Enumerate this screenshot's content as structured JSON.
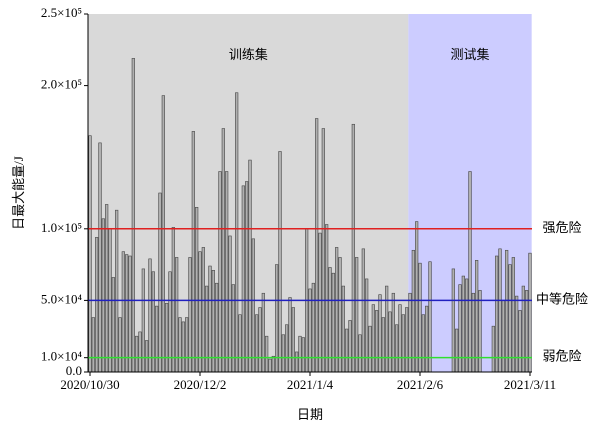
{
  "chart_data": {
    "type": "bar",
    "y_label": "日最大能量/J",
    "x_label": "日期",
    "color": "#b0b0b0",
    "categories": [
      "2020/10/30",
      null,
      null,
      null,
      null,
      null,
      null,
      null,
      null,
      null,
      null,
      null,
      null,
      null,
      null,
      null,
      null,
      null,
      null,
      null,
      null,
      null,
      null,
      null,
      null,
      null,
      null,
      null,
      null,
      null,
      null,
      null,
      null,
      "2020/12/2",
      null,
      null,
      null,
      null,
      null,
      null,
      null,
      null,
      null,
      null,
      null,
      null,
      null,
      null,
      null,
      null,
      null,
      null,
      null,
      null,
      null,
      null,
      null,
      null,
      null,
      null,
      null,
      null,
      null,
      null,
      null,
      null,
      "2021/1/4",
      null,
      null,
      null,
      null,
      null,
      null,
      null,
      null,
      null,
      null,
      null,
      null,
      null,
      null,
      null,
      null,
      null,
      null,
      null,
      null,
      null,
      null,
      null,
      null,
      null,
      null,
      null,
      null,
      null,
      null,
      null,
      null,
      "2021/2/6",
      null,
      null,
      null,
      null,
      null,
      null,
      null,
      null,
      null,
      null,
      null,
      null,
      null,
      null,
      null,
      null,
      null,
      null,
      null,
      null,
      null,
      null,
      null,
      null,
      null,
      null,
      null,
      null,
      null,
      null,
      null,
      null,
      "2021/3/11"
    ],
    "values": [
      165000,
      38000,
      94000,
      160000,
      107000,
      117000,
      100000,
      66000,
      113000,
      38000,
      84000,
      82000,
      81000,
      219000,
      25000,
      28000,
      72000,
      22000,
      79000,
      70000,
      46000,
      125000,
      193000,
      48000,
      70000,
      101000,
      80000,
      38000,
      35000,
      38000,
      80000,
      168000,
      115000,
      84000,
      87000,
      60000,
      74000,
      71000,
      62000,
      140000,
      170000,
      140000,
      95000,
      61000,
      195000,
      40000,
      130000,
      133000,
      148000,
      93000,
      40000,
      45000,
      55000,
      25000,
      9000,
      11000,
      75000,
      154000,
      26000,
      33000,
      52000,
      45000,
      14000,
      25000,
      24000,
      100000,
      58000,
      62000,
      177000,
      97000,
      170000,
      103000,
      73000,
      69000,
      87000,
      80000,
      60000,
      30000,
      36000,
      173000,
      80000,
      26000,
      86000,
      65000,
      32000,
      47000,
      43000,
      54000,
      38000,
      60000,
      42000,
      55000,
      33000,
      47000,
      40000,
      45000,
      55000,
      85000,
      105000,
      76000,
      40000,
      46000,
      77000,
      null,
      null,
      null,
      null,
      null,
      null,
      72000,
      30000,
      61000,
      67000,
      65000,
      140000,
      55000,
      78000,
      57000,
      null,
      null,
      null,
      32000,
      81000,
      86000,
      50000,
      85000,
      75000,
      80000,
      53000,
      43000,
      60000,
      57000,
      83000
    ],
    "ylim": [
      0,
      250000
    ],
    "yticks": [
      {
        "value": 0,
        "label": "0.0"
      },
      {
        "value": 10000,
        "label": "1.0×10⁴"
      },
      {
        "value": 50000,
        "label": "5.0×10⁴"
      },
      {
        "value": 100000,
        "label": "1.0×10⁵"
      },
      {
        "value": 200000,
        "label": "2.0×10⁵"
      },
      {
        "value": 250000,
        "label": "2.5×10⁵"
      }
    ],
    "regions": [
      {
        "label": "训练集",
        "color": "#d9d9d9",
        "from": 0,
        "to": 95
      },
      {
        "label": "测试集",
        "color": "#ccccff",
        "from": 96,
        "to": 132
      }
    ],
    "thresholds": [
      {
        "value": 100000,
        "label": "强危险",
        "color": "#e02020"
      },
      {
        "value": 50000,
        "label": "中等危险",
        "color": "#2020c0"
      },
      {
        "value": 10000,
        "label": "弱危险",
        "color": "#30e030"
      }
    ]
  }
}
